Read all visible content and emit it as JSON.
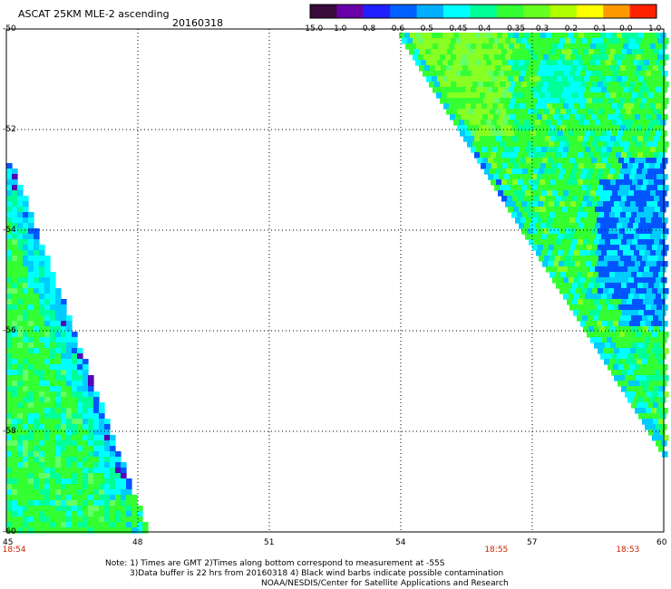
{
  "header": {
    "title": "ASCAT 25KM MLE-2 ascending",
    "date": "20160318"
  },
  "colorbar": {
    "labels": [
      "-15.0",
      "-1.0",
      "-0.8",
      "-0.6",
      "-0.5",
      "-0.45",
      "-0.4",
      "-0.35",
      "-0.3",
      "-0.2",
      "-0.1",
      "0.0",
      "1.0"
    ],
    "colors": [
      "#3a0a3a",
      "#6a00a8",
      "#2020ff",
      "#0060ff",
      "#00b0ff",
      "#00ffff",
      "#00ff99",
      "#33ff33",
      "#66ff22",
      "#b0ff00",
      "#ffff00",
      "#ff9900",
      "#ff2200"
    ]
  },
  "axes": {
    "x_labels": [
      "45",
      "48",
      "51",
      "54",
      "57",
      "60"
    ],
    "y_labels": [
      "-50",
      "-52",
      "-54",
      "-56",
      "-58",
      "-60"
    ],
    "x_range": [
      45,
      60
    ],
    "y_range": [
      -60,
      -50
    ]
  },
  "swath_times": [
    {
      "label": "18:54",
      "lon": 45.2
    },
    {
      "label": "18:55",
      "lon": 56.2
    },
    {
      "label": "18:53",
      "lon": 59.2
    }
  ],
  "notes": {
    "line1": "Note: 1) Times are GMT 2)Times along bottom correspond to measurement at -55S",
    "line2": "3)Data buffer is 22 hrs from 20160318 4) Black wind barbs indicate possible contamination",
    "line3": "NOAA/NESDIS/Center for Satellite Applications and Research"
  },
  "colors": {
    "green": "#33ff33",
    "lime": "#88ff22",
    "light_green": "#66ff66",
    "cyan": "#00ffff",
    "aqua": "#00ff99",
    "sky": "#00ccff",
    "blue": "#0055ff",
    "purple": "#5500bb"
  }
}
